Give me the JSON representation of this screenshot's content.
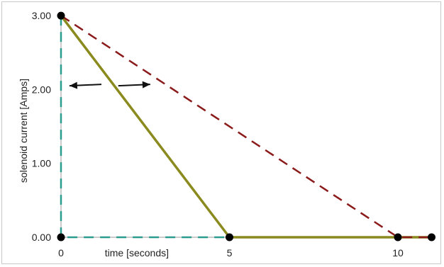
{
  "chart_data": {
    "type": "line",
    "title": "",
    "xlabel": "time [seconds]",
    "ylabel": "solenoid current [Amps]",
    "xlim": [
      0,
      11
    ],
    "ylim": [
      0,
      3
    ],
    "x_ticks": [
      {
        "value": 0,
        "label": "0"
      },
      {
        "value": 5,
        "label": "5"
      },
      {
        "value": 10,
        "label": "10"
      }
    ],
    "y_ticks": [
      {
        "value": 0,
        "label": "0.00"
      },
      {
        "value": 1,
        "label": "1.00"
      },
      {
        "value": 2,
        "label": "2.00"
      },
      {
        "value": 3,
        "label": "3.00"
      }
    ],
    "grid": false,
    "series": [
      {
        "style": "dashed",
        "color": "#2a9d8f",
        "points": [
          [
            0,
            3
          ],
          [
            0,
            0
          ],
          [
            11,
            0
          ]
        ]
      },
      {
        "style": "solid",
        "color": "#8a8a1e",
        "points": [
          [
            0,
            3
          ],
          [
            5,
            0
          ],
          [
            11,
            0
          ]
        ]
      },
      {
        "style": "dashed",
        "color": "#8b1a1a",
        "points": [
          [
            0,
            3
          ],
          [
            10,
            0
          ],
          [
            11,
            0
          ]
        ]
      }
    ],
    "markers": [
      [
        0,
        3
      ],
      [
        0,
        0
      ],
      [
        5,
        0
      ],
      [
        10,
        0
      ],
      [
        11,
        0
      ]
    ],
    "arrows": [
      {
        "from": [
          1.2,
          2.07
        ],
        "to": [
          0.25,
          2.05
        ]
      },
      {
        "from": [
          1.7,
          2.05
        ],
        "to": [
          2.65,
          2.07
        ]
      }
    ]
  }
}
